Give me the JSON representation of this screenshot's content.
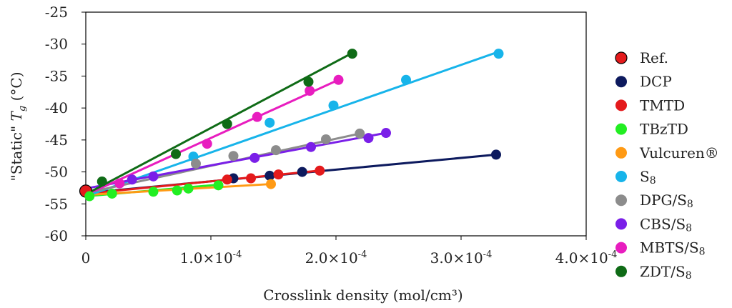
{
  "chart_data": {
    "type": "scatter",
    "title": "",
    "xlabel": "Crosslink density (mol/cm³)",
    "ylabel": "\"Static\" Tg (°C)",
    "ylabel_main": "\"Static\" ",
    "ylabel_T": "T",
    "ylabel_sub": "g",
    "ylabel_unit": " (°C)",
    "xlim": [
      0,
      0.0004
    ],
    "ylim": [
      -60,
      -25
    ],
    "x_ticks": [
      0,
      0.0001,
      0.0002,
      0.0003,
      0.0004
    ],
    "x_tick_labels": [
      {
        "mant": "0",
        "exp": ""
      },
      {
        "mant": "1.0×10",
        "exp": "-4"
      },
      {
        "mant": "2.0×10",
        "exp": "-4"
      },
      {
        "mant": "3.0×10",
        "exp": "-4"
      },
      {
        "mant": "4.0×10",
        "exp": "-4"
      }
    ],
    "y_ticks": [
      -25,
      -30,
      -35,
      -40,
      -45,
      -50,
      -55,
      -60
    ],
    "y_tick_labels": [
      "-25",
      "-30",
      "-35",
      "-40",
      "-45",
      "-50",
      "-55",
      "-60"
    ],
    "grid": false,
    "legend_position": "right",
    "series": [
      {
        "name": "Ref.",
        "label_main": "Ref.",
        "label_sub": "",
        "color": "#e41a1c",
        "points": [
          [
            0.0,
            -53.0
          ]
        ],
        "trendline": null
      },
      {
        "name": "DCP",
        "label_main": "DCP",
        "label_sub": "",
        "color": "#0d1a5e",
        "points": [
          [
            0.000118,
            -51.0
          ],
          [
            0.000147,
            -50.6
          ],
          [
            0.000173,
            -50.0
          ],
          [
            0.000328,
            -47.3
          ]
        ],
        "trendline": [
          [
            0.0,
            -53.3
          ],
          [
            0.000328,
            -47.3
          ]
        ]
      },
      {
        "name": "TMTD",
        "label_main": "TMTD",
        "label_sub": "",
        "color": "#e41a1c",
        "points": [
          [
            0.000113,
            -51.2
          ],
          [
            0.000132,
            -51.0
          ],
          [
            0.000154,
            -50.4
          ],
          [
            0.000187,
            -49.8
          ]
        ],
        "trendline": [
          [
            0.0,
            -53.4
          ],
          [
            0.000187,
            -49.8
          ]
        ]
      },
      {
        "name": "TBzTD",
        "label_main": "TBzTD",
        "label_sub": "",
        "color": "#22ee22",
        "points": [
          [
            3e-06,
            -53.8
          ],
          [
            2.1e-05,
            -53.4
          ],
          [
            5.4e-05,
            -53.1
          ],
          [
            7.3e-05,
            -52.9
          ],
          [
            8.2e-05,
            -52.6
          ],
          [
            0.000106,
            -52.1
          ]
        ],
        "trendline": [
          [
            0.0,
            -53.8
          ],
          [
            0.000106,
            -52.0
          ]
        ]
      },
      {
        "name": "Vulcuren®",
        "label_main": "Vulcuren®",
        "label_sub": "",
        "color": "#ff9a14",
        "points": [
          [
            0.000148,
            -51.9
          ]
        ],
        "trendline": [
          [
            0.0,
            -53.6
          ],
          [
            0.000148,
            -51.9
          ]
        ]
      },
      {
        "name": "S8",
        "label_main": "S",
        "label_sub": "8",
        "color": "#17b4ea",
        "points": [
          [
            8.6e-05,
            -47.6
          ],
          [
            0.000147,
            -42.3
          ],
          [
            0.000198,
            -39.6
          ],
          [
            0.000256,
            -35.6
          ],
          [
            0.00033,
            -31.5
          ]
        ],
        "trendline": [
          [
            0.0,
            -53.8
          ],
          [
            0.00033,
            -31.2
          ]
        ]
      },
      {
        "name": "DPG/S8",
        "label_main": "DPG/S",
        "label_sub": "8",
        "color": "#8c8c8c",
        "points": [
          [
            8.8e-05,
            -48.7
          ],
          [
            0.000118,
            -47.5
          ],
          [
            0.000152,
            -46.6
          ],
          [
            0.000192,
            -44.9
          ],
          [
            0.000219,
            -44.0
          ]
        ],
        "trendline": [
          [
            0.0,
            -53.3
          ],
          [
            0.000219,
            -44.0
          ]
        ]
      },
      {
        "name": "CBS/S8",
        "label_main": "CBS/S",
        "label_sub": "8",
        "color": "#7a1fe8",
        "points": [
          [
            3.7e-05,
            -51.2
          ],
          [
            5.4e-05,
            -50.7
          ],
          [
            0.000135,
            -47.8
          ],
          [
            0.00018,
            -46.1
          ],
          [
            0.000226,
            -44.7
          ],
          [
            0.00024,
            -43.9
          ]
        ],
        "trendline": [
          [
            0.0,
            -52.6
          ],
          [
            0.00024,
            -43.9
          ]
        ]
      },
      {
        "name": "MBTS/S8",
        "label_main": "MBTS/S",
        "label_sub": "8",
        "color": "#e81dbf",
        "points": [
          [
            2.7e-05,
            -51.8
          ],
          [
            9.7e-05,
            -45.6
          ],
          [
            0.000137,
            -41.4
          ],
          [
            0.000179,
            -37.3
          ],
          [
            0.000202,
            -35.6
          ]
        ],
        "trendline": [
          [
            0.0,
            -53.6
          ],
          [
            0.000202,
            -35.6
          ]
        ]
      },
      {
        "name": "ZDT/S8",
        "label_main": "ZDT/S",
        "label_sub": "8",
        "color": "#0f6b16",
        "points": [
          [
            1.3e-05,
            -51.5
          ],
          [
            7.2e-05,
            -47.2
          ],
          [
            0.000113,
            -42.5
          ],
          [
            0.000178,
            -35.9
          ],
          [
            0.000213,
            -31.5
          ]
        ],
        "trendline": [
          [
            0.0,
            -53.5
          ],
          [
            0.000213,
            -31.4
          ]
        ]
      }
    ]
  }
}
